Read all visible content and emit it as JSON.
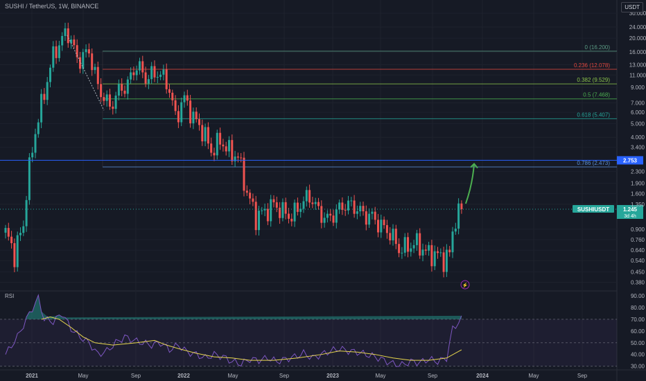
{
  "header": {
    "title": "SUSHI / TetherUS, 1W, BINANCE",
    "currency": "USDT"
  },
  "rsi": {
    "label": "RSI"
  },
  "colors": {
    "background": "#161a25",
    "up": "#26a69a",
    "down": "#ef5350",
    "rsi": "#7e57c2",
    "rsi_ma": "#e7d64d",
    "arrow": "#4caf50",
    "current_line": "#2962ff"
  },
  "chart_data": [
    {
      "type": "candlestick",
      "title": "SUSHI / TetherUS, 1W, BINANCE",
      "scale": "log",
      "x_ticks": [
        "2021",
        "May",
        "Sep",
        "2022",
        "May",
        "Sep",
        "2023",
        "May",
        "Sep",
        "2024",
        "May",
        "Sep"
      ],
      "y_ticks": [
        30.0,
        24.0,
        20.0,
        16.0,
        13.0,
        11.0,
        9.0,
        7.0,
        6.0,
        5.0,
        4.0,
        3.4,
        2.3,
        1.9,
        1.6,
        1.35,
        0.9,
        0.76,
        0.64,
        0.54,
        0.45,
        0.38
      ],
      "ylim": [
        0.33,
        34
      ],
      "fib_levels": [
        {
          "label": "0 (16.200)",
          "value": 16.2,
          "color": "#5b9c85"
        },
        {
          "label": "0.236 (12.078)",
          "value": 12.078,
          "color": "#e0473f"
        },
        {
          "label": "0.382 (9.529)",
          "value": 9.529,
          "color": "#8bc34a"
        },
        {
          "label": "0.5 (7.468)",
          "value": 7.468,
          "color": "#4caf50"
        },
        {
          "label": "0.618 (5.407)",
          "value": 5.407,
          "color": "#26a69a"
        },
        {
          "label": "0.786 (2.473)",
          "value": 2.473,
          "color": "#5b8fd6"
        }
      ],
      "horizontal_line": {
        "label": "2.753",
        "value": 2.753
      },
      "current_price": {
        "symbol": "SUSHIUSDT",
        "price": "1.245",
        "countdown": "3d 4h",
        "value": 1.245
      },
      "price_anchors": [
        {
          "week": 0,
          "price": 0.85
        },
        {
          "week": 3,
          "price": 0.6
        },
        {
          "week": 6,
          "price": 0.95
        },
        {
          "week": 9,
          "price": 3.2
        },
        {
          "week": 13,
          "price": 8.0
        },
        {
          "week": 16,
          "price": 15
        },
        {
          "week": 19,
          "price": 20
        },
        {
          "week": 21,
          "price": 22
        },
        {
          "week": 24,
          "price": 14
        },
        {
          "week": 28,
          "price": 16
        },
        {
          "week": 31,
          "price": 9
        },
        {
          "week": 35,
          "price": 6.5
        },
        {
          "week": 38,
          "price": 8.5
        },
        {
          "week": 41,
          "price": 9.5
        },
        {
          "week": 44,
          "price": 13
        },
        {
          "week": 47,
          "price": 10.5
        },
        {
          "week": 51,
          "price": 11.5
        },
        {
          "week": 54,
          "price": 10
        },
        {
          "week": 57,
          "price": 5.5
        },
        {
          "week": 60,
          "price": 7.5
        },
        {
          "week": 63,
          "price": 5.5
        },
        {
          "week": 66,
          "price": 4.5
        },
        {
          "week": 69,
          "price": 3.2
        },
        {
          "week": 72,
          "price": 3.8
        },
        {
          "week": 75,
          "price": 3.2
        },
        {
          "week": 78,
          "price": 2.9
        },
        {
          "week": 81,
          "price": 1.6
        },
        {
          "week": 84,
          "price": 1.1
        },
        {
          "week": 87,
          "price": 1.2
        },
        {
          "week": 90,
          "price": 1.35
        },
        {
          "week": 93,
          "price": 1.2
        },
        {
          "week": 96,
          "price": 1.1
        },
        {
          "week": 99,
          "price": 1.35
        },
        {
          "week": 102,
          "price": 1.55
        },
        {
          "week": 105,
          "price": 1.2
        },
        {
          "week": 108,
          "price": 1.05
        },
        {
          "week": 111,
          "price": 1.2
        },
        {
          "week": 114,
          "price": 1.35
        },
        {
          "week": 117,
          "price": 1.3
        },
        {
          "week": 120,
          "price": 1.15
        },
        {
          "week": 123,
          "price": 1.1
        },
        {
          "week": 126,
          "price": 0.95
        },
        {
          "week": 129,
          "price": 0.85
        },
        {
          "week": 132,
          "price": 0.65
        },
        {
          "week": 135,
          "price": 0.68
        },
        {
          "week": 138,
          "price": 0.72
        },
        {
          "week": 141,
          "price": 0.62
        },
        {
          "week": 144,
          "price": 0.6
        },
        {
          "week": 147,
          "price": 0.56
        },
        {
          "week": 149,
          "price": 0.6
        },
        {
          "week": 151,
          "price": 1.1
        },
        {
          "week": 153,
          "price": 1.245
        }
      ]
    },
    {
      "type": "line",
      "title": "RSI",
      "y_ticks": [
        90.0,
        80.0,
        70.0,
        60.0,
        50.0,
        40.0,
        30.0
      ],
      "ylim": [
        28,
        93
      ],
      "bands": [
        70,
        50,
        30
      ],
      "rsi_anchors": [
        {
          "week": 0,
          "v": 40
        },
        {
          "week": 4,
          "v": 55
        },
        {
          "week": 8,
          "v": 75
        },
        {
          "week": 11,
          "v": 88
        },
        {
          "week": 13,
          "v": 70
        },
        {
          "week": 16,
          "v": 68
        },
        {
          "week": 19,
          "v": 75
        },
        {
          "week": 22,
          "v": 62
        },
        {
          "week": 25,
          "v": 55
        },
        {
          "week": 28,
          "v": 50
        },
        {
          "week": 31,
          "v": 40
        },
        {
          "week": 34,
          "v": 43
        },
        {
          "week": 37,
          "v": 50
        },
        {
          "week": 40,
          "v": 55
        },
        {
          "week": 43,
          "v": 52
        },
        {
          "week": 46,
          "v": 50
        },
        {
          "week": 49,
          "v": 48
        },
        {
          "week": 52,
          "v": 50
        },
        {
          "week": 55,
          "v": 44
        },
        {
          "week": 58,
          "v": 48
        },
        {
          "week": 61,
          "v": 42
        },
        {
          "week": 64,
          "v": 40
        },
        {
          "week": 67,
          "v": 37
        },
        {
          "week": 70,
          "v": 40
        },
        {
          "week": 73,
          "v": 38
        },
        {
          "week": 76,
          "v": 34
        },
        {
          "week": 79,
          "v": 32
        },
        {
          "week": 82,
          "v": 36
        },
        {
          "week": 85,
          "v": 35
        },
        {
          "week": 88,
          "v": 37
        },
        {
          "week": 91,
          "v": 34
        },
        {
          "week": 94,
          "v": 36
        },
        {
          "week": 97,
          "v": 38
        },
        {
          "week": 100,
          "v": 41
        },
        {
          "week": 103,
          "v": 37
        },
        {
          "week": 106,
          "v": 40
        },
        {
          "week": 109,
          "v": 43
        },
        {
          "week": 112,
          "v": 45
        },
        {
          "week": 115,
          "v": 43
        },
        {
          "week": 118,
          "v": 42
        },
        {
          "week": 121,
          "v": 40
        },
        {
          "week": 124,
          "v": 38
        },
        {
          "week": 127,
          "v": 35
        },
        {
          "week": 130,
          "v": 32
        },
        {
          "week": 133,
          "v": 31
        },
        {
          "week": 136,
          "v": 34
        },
        {
          "week": 139,
          "v": 33
        },
        {
          "week": 142,
          "v": 36
        },
        {
          "week": 145,
          "v": 34
        },
        {
          "week": 148,
          "v": 37
        },
        {
          "week": 150,
          "v": 62
        },
        {
          "week": 153,
          "v": 70
        }
      ],
      "ma_anchors": [
        {
          "week": 12,
          "v": 70
        },
        {
          "week": 15,
          "v": 72
        },
        {
          "week": 18,
          "v": 70
        },
        {
          "week": 22,
          "v": 63
        },
        {
          "week": 26,
          "v": 55
        },
        {
          "week": 30,
          "v": 50
        },
        {
          "week": 36,
          "v": 48
        },
        {
          "week": 44,
          "v": 50
        },
        {
          "week": 50,
          "v": 52
        },
        {
          "week": 54,
          "v": 48
        },
        {
          "week": 58,
          "v": 45
        },
        {
          "week": 64,
          "v": 41
        },
        {
          "week": 70,
          "v": 38
        },
        {
          "week": 76,
          "v": 37
        },
        {
          "week": 82,
          "v": 35
        },
        {
          "week": 90,
          "v": 35
        },
        {
          "week": 98,
          "v": 37
        },
        {
          "week": 106,
          "v": 40
        },
        {
          "week": 112,
          "v": 43
        },
        {
          "week": 118,
          "v": 42
        },
        {
          "week": 124,
          "v": 40
        },
        {
          "week": 130,
          "v": 37
        },
        {
          "week": 136,
          "v": 35
        },
        {
          "week": 142,
          "v": 35
        },
        {
          "week": 148,
          "v": 37
        },
        {
          "week": 153,
          "v": 44
        }
      ]
    }
  ]
}
